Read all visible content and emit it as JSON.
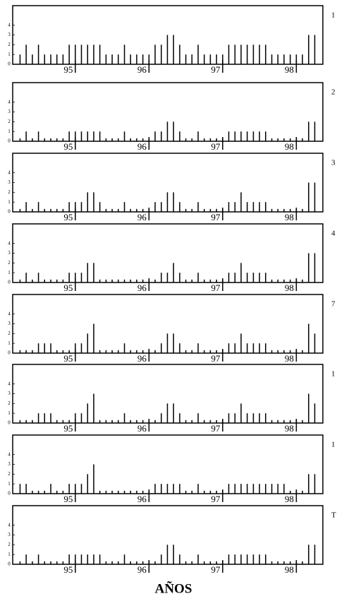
{
  "x_label": "AÑOS",
  "chart_data": [
    {
      "type": "bar",
      "label": "1",
      "color": "#000000",
      "x": [
        94.25,
        94.333,
        94.417,
        94.5,
        94.583,
        94.667,
        94.75,
        94.833,
        94.917,
        95,
        95.083,
        95.167,
        95.25,
        95.333,
        95.417,
        95.5,
        95.583,
        95.667,
        95.75,
        95.833,
        95.917,
        96,
        96.083,
        96.167,
        96.25,
        96.333,
        96.417,
        96.5,
        96.583,
        96.667,
        96.75,
        96.833,
        96.917,
        97,
        97.083,
        97.167,
        97.25,
        97.333,
        97.417,
        97.5,
        97.583,
        97.667,
        97.75,
        97.833,
        97.917,
        98,
        98.083,
        98.167,
        98.25
      ],
      "values": [
        1,
        2,
        1,
        2,
        1,
        1,
        1,
        1,
        2,
        2,
        2,
        2,
        2,
        2,
        1,
        1,
        1,
        2,
        1,
        1,
        1,
        1,
        2,
        2,
        3,
        3,
        2,
        1,
        1,
        2,
        1,
        1,
        1,
        1,
        2,
        2,
        2,
        2,
        2,
        2,
        2,
        1,
        1,
        1,
        1,
        1,
        1,
        3,
        3
      ],
      "xlim": [
        94.15,
        98.36
      ],
      "ylim": [
        0,
        6
      ],
      "xticks": [
        95,
        96,
        97,
        98
      ],
      "yticks": [
        0,
        1,
        2,
        3,
        4
      ]
    },
    {
      "type": "bar",
      "label": "2",
      "color": "#000000",
      "x": [
        94.25,
        94.333,
        94.417,
        94.5,
        94.583,
        94.667,
        94.75,
        94.833,
        94.917,
        95,
        95.083,
        95.167,
        95.25,
        95.333,
        95.417,
        95.5,
        95.583,
        95.667,
        95.75,
        95.833,
        95.917,
        96,
        96.083,
        96.167,
        96.25,
        96.333,
        96.417,
        96.5,
        96.583,
        96.667,
        96.75,
        96.833,
        96.917,
        97,
        97.083,
        97.167,
        97.25,
        97.333,
        97.417,
        97.5,
        97.583,
        97.667,
        97.75,
        97.833,
        97.917,
        98,
        98.083,
        98.167,
        98.25
      ],
      "values": [
        0.3,
        1,
        0.3,
        1,
        0.3,
        0.3,
        0.3,
        0.3,
        1,
        1,
        1,
        1,
        1,
        1,
        0.3,
        0.3,
        0.3,
        1,
        0.3,
        0.3,
        0.3,
        0.3,
        1,
        1,
        2,
        2,
        1,
        0.3,
        0.3,
        1,
        0.3,
        0.3,
        0.3,
        0.3,
        1,
        1,
        1,
        1,
        1,
        1,
        1,
        0.3,
        0.3,
        0.3,
        0.3,
        0.3,
        0.3,
        2,
        2
      ],
      "xlim": [
        94.15,
        98.36
      ],
      "ylim": [
        0,
        6
      ],
      "xticks": [
        95,
        96,
        97,
        98
      ],
      "yticks": [
        0,
        1,
        2,
        3,
        4
      ]
    },
    {
      "type": "bar",
      "label": "3",
      "color": "#000000",
      "x": [
        94.25,
        94.333,
        94.417,
        94.5,
        94.583,
        94.667,
        94.75,
        94.833,
        94.917,
        95,
        95.083,
        95.167,
        95.25,
        95.333,
        95.417,
        95.5,
        95.583,
        95.667,
        95.75,
        95.833,
        95.917,
        96,
        96.083,
        96.167,
        96.25,
        96.333,
        96.417,
        96.5,
        96.583,
        96.667,
        96.75,
        96.833,
        96.917,
        97,
        97.083,
        97.167,
        97.25,
        97.333,
        97.417,
        97.5,
        97.583,
        97.667,
        97.75,
        97.833,
        97.917,
        98,
        98.083,
        98.167,
        98.25
      ],
      "values": [
        0.3,
        1,
        0.3,
        1,
        0.3,
        0.3,
        0.3,
        0.3,
        1,
        1,
        1,
        2,
        2,
        1,
        0.3,
        0.3,
        0.3,
        1,
        0.3,
        0.3,
        0.3,
        0.3,
        1,
        1,
        2,
        2,
        1,
        0.3,
        0.3,
        1,
        0.3,
        0.3,
        0.3,
        0.3,
        1,
        1,
        2,
        1,
        1,
        1,
        1,
        0.3,
        0.3,
        0.3,
        0.3,
        0.3,
        0.3,
        3,
        3
      ],
      "xlim": [
        94.15,
        98.36
      ],
      "ylim": [
        0,
        6
      ],
      "xticks": [
        95,
        96,
        97,
        98
      ],
      "yticks": [
        0,
        1,
        2,
        3,
        4
      ]
    },
    {
      "type": "bar",
      "label": "4",
      "color": "#000000",
      "x": [
        94.25,
        94.333,
        94.417,
        94.5,
        94.583,
        94.667,
        94.75,
        94.833,
        94.917,
        95,
        95.083,
        95.167,
        95.25,
        95.333,
        95.417,
        95.5,
        95.583,
        95.667,
        95.75,
        95.833,
        95.917,
        96,
        96.083,
        96.167,
        96.25,
        96.333,
        96.417,
        96.5,
        96.583,
        96.667,
        96.75,
        96.833,
        96.917,
        97,
        97.083,
        97.167,
        97.25,
        97.333,
        97.417,
        97.5,
        97.583,
        97.667,
        97.75,
        97.833,
        97.917,
        98,
        98.083,
        98.167,
        98.25
      ],
      "values": [
        0.3,
        1,
        0.3,
        1,
        0.3,
        0.3,
        0.3,
        0.3,
        1,
        1,
        1,
        2,
        2,
        0.3,
        0.3,
        0.3,
        0.3,
        0.3,
        0.3,
        0.3,
        0.3,
        0.3,
        0.3,
        1,
        1,
        2,
        1,
        0.3,
        0.3,
        1,
        0.3,
        0.3,
        0.3,
        0.3,
        1,
        1,
        2,
        1,
        1,
        1,
        1,
        0.3,
        0.3,
        0.3,
        0.3,
        0.3,
        0.3,
        3,
        3
      ],
      "xlim": [
        94.15,
        98.36
      ],
      "ylim": [
        0,
        6
      ],
      "xticks": [
        95,
        96,
        97,
        98
      ],
      "yticks": [
        0,
        1,
        2,
        3,
        4
      ]
    },
    {
      "type": "bar",
      "label": "7",
      "color": "#000000",
      "x": [
        94.25,
        94.333,
        94.417,
        94.5,
        94.583,
        94.667,
        94.75,
        94.833,
        94.917,
        95,
        95.083,
        95.167,
        95.25,
        95.333,
        95.417,
        95.5,
        95.583,
        95.667,
        95.75,
        95.833,
        95.917,
        96,
        96.083,
        96.167,
        96.25,
        96.333,
        96.417,
        96.5,
        96.583,
        96.667,
        96.75,
        96.833,
        96.917,
        97,
        97.083,
        97.167,
        97.25,
        97.333,
        97.417,
        97.5,
        97.583,
        97.667,
        97.75,
        97.833,
        97.917,
        98,
        98.083,
        98.167,
        98.25
      ],
      "values": [
        0.3,
        0.3,
        0.3,
        1,
        1,
        1,
        0.3,
        0.3,
        0.3,
        1,
        1,
        2,
        3,
        0.3,
        0.3,
        0.3,
        0.3,
        1,
        0.3,
        0.3,
        0.3,
        0.3,
        0.3,
        1,
        2,
        2,
        1,
        0.3,
        0.3,
        1,
        0.3,
        0.3,
        0.3,
        0.3,
        1,
        1,
        2,
        1,
        1,
        1,
        1,
        0.3,
        0.3,
        0.3,
        0.3,
        0.3,
        0.3,
        3,
        2
      ],
      "xlim": [
        94.15,
        98.36
      ],
      "ylim": [
        0,
        6
      ],
      "xticks": [
        95,
        96,
        97,
        98
      ],
      "yticks": [
        0,
        1,
        2,
        3,
        4
      ]
    },
    {
      "type": "bar",
      "label": "1",
      "color": "#000000",
      "x": [
        94.25,
        94.333,
        94.417,
        94.5,
        94.583,
        94.667,
        94.75,
        94.833,
        94.917,
        95,
        95.083,
        95.167,
        95.25,
        95.333,
        95.417,
        95.5,
        95.583,
        95.667,
        95.75,
        95.833,
        95.917,
        96,
        96.083,
        96.167,
        96.25,
        96.333,
        96.417,
        96.5,
        96.583,
        96.667,
        96.75,
        96.833,
        96.917,
        97,
        97.083,
        97.167,
        97.25,
        97.333,
        97.417,
        97.5,
        97.583,
        97.667,
        97.75,
        97.833,
        97.917,
        98,
        98.083,
        98.167,
        98.25
      ],
      "values": [
        0.3,
        0.3,
        0.3,
        1,
        1,
        1,
        0.3,
        0.3,
        0.3,
        1,
        1,
        2,
        3,
        0.3,
        0.3,
        0.3,
        0.3,
        1,
        0.3,
        0.3,
        0.3,
        0.3,
        0.3,
        1,
        2,
        2,
        1,
        0.3,
        0.3,
        1,
        0.3,
        0.3,
        0.3,
        0.3,
        1,
        1,
        2,
        1,
        1,
        1,
        1,
        0.3,
        0.3,
        0.3,
        0.3,
        0.3,
        0.3,
        3,
        2
      ],
      "xlim": [
        94.15,
        98.36
      ],
      "ylim": [
        0,
        6
      ],
      "xticks": [
        95,
        96,
        97,
        98
      ],
      "yticks": [
        0,
        1,
        2,
        3,
        4
      ]
    },
    {
      "type": "bar",
      "label": "1",
      "color": "#000000",
      "x": [
        94.25,
        94.333,
        94.417,
        94.5,
        94.583,
        94.667,
        94.75,
        94.833,
        94.917,
        95,
        95.083,
        95.167,
        95.25,
        95.333,
        95.417,
        95.5,
        95.583,
        95.667,
        95.75,
        95.833,
        95.917,
        96,
        96.083,
        96.167,
        96.25,
        96.333,
        96.417,
        96.5,
        96.583,
        96.667,
        96.75,
        96.833,
        96.917,
        97,
        97.083,
        97.167,
        97.25,
        97.333,
        97.417,
        97.5,
        97.583,
        97.667,
        97.75,
        97.833,
        97.917,
        98,
        98.083,
        98.167,
        98.25
      ],
      "values": [
        1,
        1,
        0.3,
        0.3,
        0.3,
        1,
        0.3,
        0.3,
        1,
        1,
        1,
        2,
        3,
        0.3,
        0.3,
        0.3,
        0.3,
        0.3,
        0.3,
        0.3,
        0.3,
        0.3,
        1,
        1,
        1,
        1,
        1,
        0.3,
        0.3,
        1,
        0.3,
        0.3,
        0.3,
        0.3,
        1,
        1,
        1,
        1,
        1,
        1,
        1,
        1,
        1,
        1,
        0.3,
        0.3,
        0.3,
        2,
        2
      ],
      "xlim": [
        94.15,
        98.36
      ],
      "ylim": [
        0,
        6
      ],
      "xticks": [
        95,
        96,
        97,
        98
      ],
      "yticks": [
        0,
        1,
        2,
        3,
        4
      ]
    },
    {
      "type": "bar",
      "label": "T",
      "color": "#000000",
      "x": [
        94.25,
        94.333,
        94.417,
        94.5,
        94.583,
        94.667,
        94.75,
        94.833,
        94.917,
        95,
        95.083,
        95.167,
        95.25,
        95.333,
        95.417,
        95.5,
        95.583,
        95.667,
        95.75,
        95.833,
        95.917,
        96,
        96.083,
        96.167,
        96.25,
        96.333,
        96.417,
        96.5,
        96.583,
        96.667,
        96.75,
        96.833,
        96.917,
        97,
        97.083,
        97.167,
        97.25,
        97.333,
        97.417,
        97.5,
        97.583,
        97.667,
        97.75,
        97.833,
        97.917,
        98,
        98.083,
        98.167,
        98.25
      ],
      "values": [
        0.3,
        1,
        0.3,
        1,
        0.3,
        0.3,
        0.3,
        0.3,
        1,
        1,
        1,
        1,
        1,
        1,
        0.3,
        0.3,
        0.3,
        1,
        0.3,
        0.3,
        0.3,
        0.3,
        0.3,
        1,
        2,
        2,
        1,
        0.3,
        0.3,
        1,
        0.3,
        0.3,
        0.3,
        0.3,
        1,
        1,
        1,
        1,
        1,
        1,
        1,
        0.3,
        0.3,
        0.3,
        0.3,
        0.3,
        0.3,
        2,
        2
      ],
      "xlim": [
        94.15,
        98.36
      ],
      "ylim": [
        0,
        6
      ],
      "xticks": [
        95,
        96,
        97,
        98
      ],
      "yticks": [
        0,
        1,
        2,
        3,
        4
      ]
    }
  ]
}
